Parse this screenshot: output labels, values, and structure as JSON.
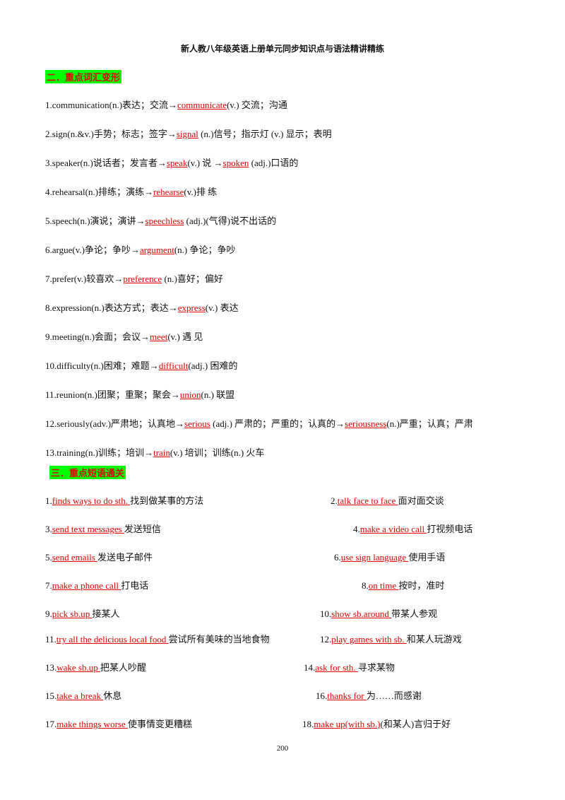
{
  "header": {
    "title": "新人教八年级英语上册单元同步知识点与语法精讲精练"
  },
  "vocab": {
    "heading": "二．重点词汇变形",
    "items": [
      [
        "1.communication(n.)表达；交流→",
        "communicate",
        "(v.) 交流；沟通"
      ],
      [
        "2.sign(n.&v.)手势；标志；签字→",
        "signal",
        " (n.)信号；指示灯 (v.) 显示；表明"
      ],
      [
        "3.speaker(n.)说话者；发言者→",
        "speak",
        "(v.) 说 →",
        "spoken",
        " (adj.)口语的"
      ],
      [
        "4.rehearsal(n.)排练；演练→",
        "rehearse",
        "(v.)排 练"
      ],
      [
        "5.speech(n.)演说；演讲→",
        "speechless",
        " (adj.)(气得)说不出话的"
      ],
      [
        "6.argue(v.)争论；争吵→",
        "argument",
        "(n.) 争论；争吵"
      ],
      [
        "7.prefer(v.)较喜欢→",
        "preference",
        " (n.)喜好；偏好"
      ],
      [
        "8.expression(n.)表达方式；表达→",
        "express",
        "(v.) 表达"
      ],
      [
        "9.meeting(n.)会面；会议→",
        "meet",
        "(v.) 遇 见"
      ],
      [
        "10.difficulty(n.)困难；难题→",
        "difficult",
        "(adj.) 困难的"
      ],
      [
        "11.reunion(n.)团聚；重聚；聚会→",
        "union",
        "(n.) 联盟"
      ],
      [
        "12.seriously(adv.)严肃地；认真地→",
        "serious",
        " (adj.) 严肃的；严重的；认真的→",
        "seriousness",
        "(n.)严重；认真；严肃"
      ],
      [
        "13.training(n.)训练；培训→",
        "train",
        "(v.) 培训；训练(n.) 火车"
      ]
    ]
  },
  "phrases": {
    "heading": "三．重点短语通关",
    "rows": [
      [
        [
          "1.",
          "finds ways to do sth. ",
          "找到做某事的方法"
        ],
        [
          "2.",
          "talk face to face ",
          "面对面交谈"
        ]
      ],
      [
        [
          "3.",
          "send text messages ",
          "发送短信"
        ],
        [
          "4.",
          "make a video call ",
          "打视频电话"
        ]
      ],
      [
        [
          "5.",
          "send emails ",
          "发送电子邮件"
        ],
        [
          "6.",
          "use sign language ",
          "使用手语"
        ]
      ],
      [
        [
          "7.",
          "make a phone call ",
          "打电话"
        ],
        [
          "8.",
          "on time ",
          "按时，准时"
        ]
      ],
      [
        [
          "9.",
          "pick sb.up ",
          "接某人"
        ],
        [
          "10.",
          "show sb.around ",
          "带某人参观"
        ]
      ],
      [
        [
          "11.",
          "try all the delicious local food ",
          "尝试所有美味的当地食物"
        ],
        [
          "12.",
          "play games with sb. ",
          "和某人玩游戏"
        ]
      ],
      [
        [
          "13.",
          "wake sb.up ",
          "把某人吵醒"
        ],
        [
          "14.",
          "ask for sth. ",
          "寻求某物"
        ]
      ],
      [
        [
          "15.",
          "take a break ",
          "休息"
        ],
        [
          "16.",
          "thanks for ",
          "为……而感谢"
        ]
      ],
      [
        [
          "17.",
          "make things worse ",
          "使事情变更糟糕"
        ],
        [
          "18.",
          "make up(with sb.)",
          "(和某人)言归于好"
        ]
      ]
    ]
  },
  "page_number": "200"
}
